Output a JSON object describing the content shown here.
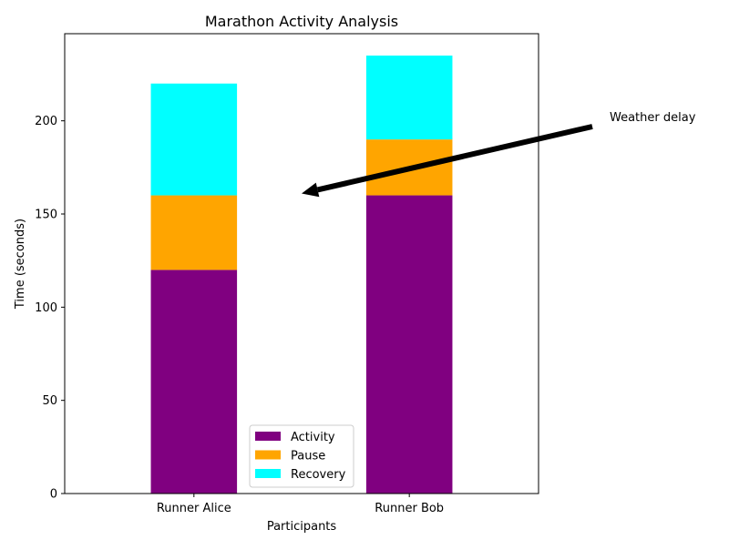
{
  "chart_data": {
    "type": "bar",
    "stacked": true,
    "title": "Marathon Activity Analysis",
    "xlabel": "Participants",
    "ylabel": "Time (seconds)",
    "categories": [
      "Runner Alice",
      "Runner Bob"
    ],
    "series": [
      {
        "name": "Activity",
        "values": [
          120,
          160
        ],
        "color": "#800080"
      },
      {
        "name": "Pause",
        "values": [
          40,
          30
        ],
        "color": "#FFA500"
      },
      {
        "name": "Recovery",
        "values": [
          60,
          45
        ],
        "color": "#00FFFF"
      }
    ],
    "ylim": [
      0,
      246.75
    ],
    "yticks": [
      0,
      50,
      100,
      150,
      200
    ],
    "legend": {
      "location": "lower center"
    },
    "grid": false,
    "annotation": {
      "text": "Weather delay",
      "target": {
        "category_position": 0.5,
        "y": 161
      },
      "arrow_color": "#000000"
    }
  }
}
